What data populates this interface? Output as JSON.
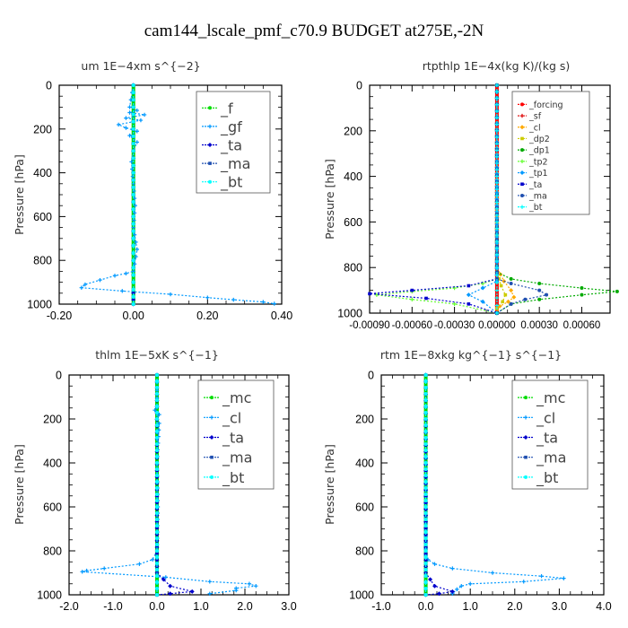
{
  "figure_title": "cam144_lscale_pmf_c70.9  BUDGET at275E,-2N",
  "chart_data": [
    {
      "type": "line",
      "title": "um   1E−4xm s^{−2}",
      "ylabel": "Pressure [hPa]",
      "xlim": [
        -0.2,
        0.4
      ],
      "ylim": [
        1000,
        0
      ],
      "x_ticks": [
        -0.2,
        0.0,
        0.2,
        0.4
      ],
      "x_tick_labels": [
        "-0.20",
        "0.00",
        "0.20",
        "0.40"
      ],
      "y_ticks": [
        0,
        200,
        400,
        600,
        800,
        1000
      ],
      "y_tick_labels": [
        "0",
        "200",
        "400",
        "600",
        "800",
        "1000"
      ],
      "legend": [
        "_f",
        "_gf",
        "_ta",
        "_ma",
        "_bt"
      ],
      "series": [
        {
          "name": "_f",
          "color": "#00dd00",
          "x": [
            0,
            0,
            0,
            0,
            0,
            0,
            0,
            0,
            0,
            0,
            0,
            0,
            0,
            0
          ],
          "y": [
            0,
            100,
            200,
            300,
            400,
            500,
            600,
            700,
            800,
            850,
            900,
            940,
            970,
            1000
          ]
        },
        {
          "name": "_gf",
          "color": "#0099ff",
          "x": [
            0,
            -0.01,
            0.01,
            -0.01,
            0.03,
            -0.02,
            0.02,
            -0.04,
            -0.02,
            0.01,
            -0.01,
            0.01,
            0,
            -0.005,
            0,
            0.005,
            0,
            0.01,
            0,
            -0.02,
            -0.05,
            -0.09,
            -0.13,
            -0.14,
            -0.03,
            0.1,
            0.2,
            0.27,
            0.35,
            0.38
          ],
          "y": [
            0,
            100,
            115,
            125,
            135,
            150,
            160,
            180,
            195,
            210,
            230,
            260,
            300,
            350,
            450,
            550,
            650,
            750,
            850,
            860,
            870,
            890,
            910,
            925,
            940,
            955,
            970,
            980,
            990,
            998
          ]
        },
        {
          "name": "_ta",
          "color": "#0000cc",
          "x": [
            0,
            0,
            0,
            0,
            0,
            0,
            0,
            0,
            0
          ],
          "y": [
            0,
            200,
            400,
            600,
            800,
            900,
            950,
            980,
            1000
          ]
        },
        {
          "name": "_ma",
          "color": "#1f4fb0",
          "x": [
            0,
            0,
            0,
            0,
            0,
            0
          ],
          "y": [
            0,
            200,
            400,
            600,
            800,
            1000
          ]
        },
        {
          "name": "_bt",
          "color": "#00ffff",
          "x": [
            0,
            0,
            0,
            0,
            0,
            0
          ],
          "y": [
            0,
            200,
            400,
            600,
            800,
            1000
          ]
        }
      ]
    },
    {
      "type": "line",
      "title": "rtpthlp   1E−4x(kg K)/(kg s)",
      "ylabel": "Pressure [hPa]",
      "xlim": [
        -0.0009,
        0.0008
      ],
      "ylim": [
        1000,
        0
      ],
      "x_ticks": [
        -0.0009,
        -0.0006,
        -0.0003,
        0.0,
        0.0003,
        0.0006
      ],
      "x_tick_labels": [
        "-0.00090",
        "-0.00060",
        "-0.00030",
        "0.00000",
        "0.00030",
        "0.00060"
      ],
      "y_ticks": [
        0,
        200,
        400,
        600,
        800,
        1000
      ],
      "y_tick_labels": [
        "0",
        "200",
        "400",
        "600",
        "800",
        "1000"
      ],
      "legend": [
        "_forcing",
        "_sf",
        "_cl",
        "_dp2",
        "_dp1",
        "_tp2",
        "_tp1",
        "_ta",
        "_ma",
        "_bt"
      ],
      "series": [
        {
          "name": "_forcing",
          "color": "#ff0000",
          "x": [
            0,
            0,
            0,
            0,
            0,
            0,
            0
          ],
          "y": [
            0,
            200,
            400,
            600,
            800,
            900,
            1000
          ]
        },
        {
          "name": "_sf",
          "color": "#dd0000",
          "x": [
            0,
            0,
            0,
            0,
            0,
            0,
            0
          ],
          "y": [
            0,
            200,
            400,
            600,
            800,
            900,
            1000
          ]
        },
        {
          "name": "_cl",
          "color": "#ffaa00",
          "x": [
            0,
            0,
            5e-05,
            0.0001,
            0.00012,
            8e-05,
            2e-05,
            0
          ],
          "y": [
            0,
            800,
            860,
            900,
            930,
            950,
            970,
            1000
          ]
        },
        {
          "name": "_dp2",
          "color": "#cccc00",
          "x": [
            0,
            0,
            3e-05,
            6e-05,
            4e-05,
            0,
            0
          ],
          "y": [
            0,
            820,
            880,
            920,
            950,
            980,
            1000
          ]
        },
        {
          "name": "_dp1",
          "color": "#00aa00",
          "x": [
            0,
            0,
            0.0001,
            0.0003,
            0.0006,
            0.00085,
            0.0006,
            0.0003,
            0.0001,
            0
          ],
          "y": [
            0,
            820,
            850,
            870,
            890,
            905,
            920,
            940,
            960,
            1000
          ]
        },
        {
          "name": "_tp2",
          "color": "#66ff33",
          "x": [
            0,
            0,
            -0.0001,
            -0.0003,
            -0.0006,
            -0.00085,
            -0.0006,
            -0.0003,
            0
          ],
          "y": [
            0,
            850,
            870,
            890,
            905,
            920,
            940,
            960,
            1000
          ]
        },
        {
          "name": "_tp1",
          "color": "#0099ff",
          "x": [
            0,
            0,
            -0.0001,
            -0.0002,
            -0.0001,
            0
          ],
          "y": [
            0,
            860,
            890,
            920,
            950,
            1000
          ]
        },
        {
          "name": "_ta",
          "color": "#0000cc",
          "x": [
            0,
            0,
            -0.0002,
            -0.0006,
            -0.0009,
            -0.0005,
            -0.0002,
            0
          ],
          "y": [
            0,
            850,
            880,
            900,
            915,
            935,
            960,
            1000
          ]
        },
        {
          "name": "_ma",
          "color": "#1f4fb0",
          "x": [
            0,
            0,
            0.0001,
            0.0003,
            0.00035,
            0.0002,
            0.0001,
            0
          ],
          "y": [
            0,
            850,
            870,
            900,
            920,
            940,
            960,
            1000
          ]
        },
        {
          "name": "_bt",
          "color": "#00ffff",
          "x": [
            0,
            0,
            0,
            0,
            0
          ],
          "y": [
            0,
            400,
            800,
            900,
            1000
          ]
        }
      ]
    },
    {
      "type": "line",
      "title": "thlm   1E−5xK  s^{−1}",
      "ylabel": "Pressure [hPa]",
      "xlim": [
        -2.0,
        3.0
      ],
      "ylim": [
        1000,
        0
      ],
      "x_ticks": [
        -2.0,
        -1.0,
        0.0,
        1.0,
        2.0,
        3.0
      ],
      "x_tick_labels": [
        "-2.0",
        "-1.0",
        "0.0",
        "1.0",
        "2.0",
        "3.0"
      ],
      "y_ticks": [
        0,
        200,
        400,
        600,
        800,
        1000
      ],
      "y_tick_labels": [
        "0",
        "200",
        "400",
        "600",
        "800",
        "1000"
      ],
      "legend": [
        "_mc",
        "_cl",
        "_ta",
        "_ma",
        "_bt"
      ],
      "series": [
        {
          "name": "_mc",
          "color": "#00dd00",
          "x": [
            0,
            0,
            0,
            0,
            0,
            0
          ],
          "y": [
            0,
            200,
            400,
            600,
            800,
            1000
          ]
        },
        {
          "name": "_cl",
          "color": "#0099ff",
          "x": [
            0,
            0,
            -0.05,
            0.05,
            0,
            0.05,
            0,
            0.02,
            0,
            -0.1,
            -0.4,
            -1.2,
            -1.6,
            -1.7,
            0.2,
            1.2,
            2.1,
            2.25,
            1.8,
            1.8,
            1.2
          ],
          "y": [
            0,
            140,
            160,
            180,
            200,
            220,
            400,
            600,
            800,
            840,
            860,
            880,
            890,
            895,
            920,
            940,
            950,
            960,
            970,
            980,
            995
          ]
        },
        {
          "name": "_ta",
          "color": "#0000cc",
          "x": [
            0,
            0,
            0.3,
            0.8,
            0.3,
            0
          ],
          "y": [
            0,
            900,
            960,
            985,
            995,
            1000
          ]
        },
        {
          "name": "_ma",
          "color": "#1f4fb0",
          "x": [
            0,
            0,
            0,
            0,
            0,
            0
          ],
          "y": [
            0,
            200,
            400,
            600,
            800,
            1000
          ]
        },
        {
          "name": "_bt",
          "color": "#00ffff",
          "x": [
            0,
            0,
            0,
            0,
            0,
            0
          ],
          "y": [
            0,
            200,
            400,
            600,
            800,
            1000
          ]
        }
      ]
    },
    {
      "type": "line",
      "title": "rtm   1E−8xkg  kg^{−1} s^{−1}",
      "ylabel": "Pressure [hPa]",
      "xlim": [
        -1.0,
        4.0
      ],
      "ylim": [
        1000,
        0
      ],
      "x_ticks": [
        -1.0,
        0.0,
        1.0,
        2.0,
        3.0,
        4.0
      ],
      "x_tick_labels": [
        "-1.0",
        "0.0",
        "1.0",
        "2.0",
        "3.0",
        "4.0"
      ],
      "y_ticks": [
        0,
        200,
        400,
        600,
        800,
        1000
      ],
      "y_tick_labels": [
        "0",
        "200",
        "400",
        "600",
        "800",
        "1000"
      ],
      "legend": [
        "_mc",
        "_cl",
        "_ta",
        "_ma",
        "_bt"
      ],
      "series": [
        {
          "name": "_mc",
          "color": "#00dd00",
          "x": [
            0,
            0,
            0,
            0,
            0,
            0
          ],
          "y": [
            0,
            200,
            400,
            600,
            800,
            1000
          ]
        },
        {
          "name": "_cl",
          "color": "#0099ff",
          "x": [
            0,
            0,
            0.05,
            0.2,
            0.6,
            1.5,
            2.6,
            3.1,
            2.2,
            1.0,
            0.8,
            0.7,
            0.6
          ],
          "y": [
            0,
            820,
            840,
            860,
            880,
            900,
            915,
            925,
            940,
            950,
            960,
            975,
            995
          ]
        },
        {
          "name": "_ta",
          "color": "#0000cc",
          "x": [
            0,
            0,
            0.2,
            0.6,
            0.3,
            0
          ],
          "y": [
            0,
            900,
            960,
            985,
            995,
            1000
          ]
        },
        {
          "name": "_ma",
          "color": "#1f4fb0",
          "x": [
            0,
            0,
            0,
            0,
            0,
            0
          ],
          "y": [
            0,
            200,
            400,
            600,
            800,
            1000
          ]
        },
        {
          "name": "_bt",
          "color": "#00ffff",
          "x": [
            0,
            0,
            0,
            0,
            0,
            0
          ],
          "y": [
            0,
            200,
            400,
            600,
            800,
            1000
          ]
        }
      ]
    }
  ]
}
